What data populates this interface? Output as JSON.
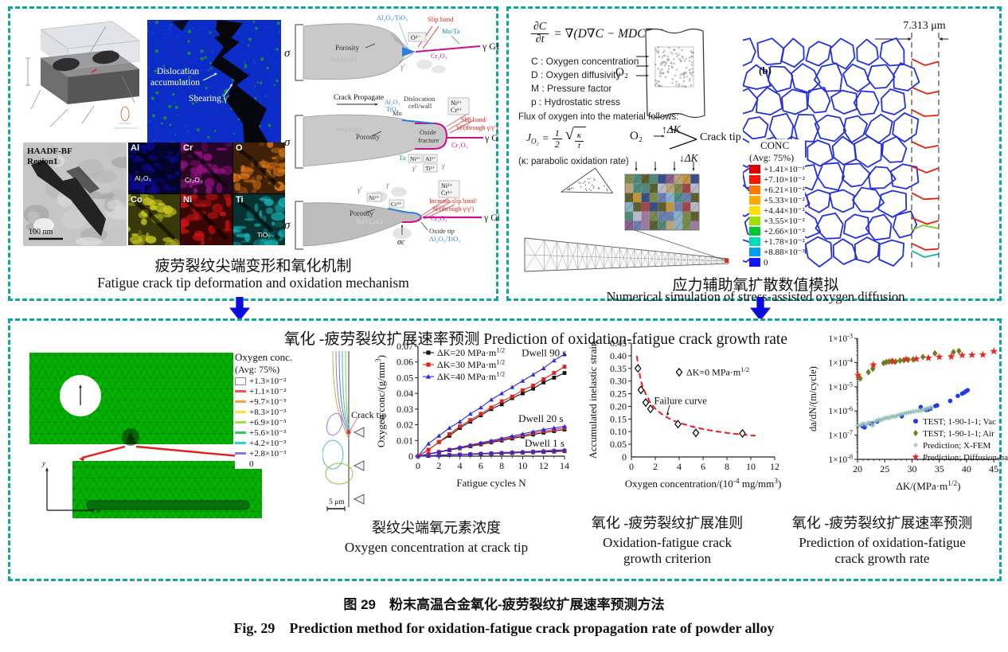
{
  "colors": {
    "teal_border": "#0ea79e",
    "arrow_blue": "#0b0bdd",
    "gb_blue": "#2330dd",
    "gb_red": "#e82010",
    "mesh_green": "#00b400",
    "chart_black": "#141414",
    "chart_red": "#e3211c",
    "chart_blue": "#2b2be0",
    "curve_red": "#ef1c1c",
    "vac_blue": "#1f3be8",
    "air_olive": "#74791f",
    "xfem_teal": "#8fbdb5",
    "diff_red": "#e8261d",
    "magenta_gb": "#cc0f8e",
    "oxide_blue": "#2a7fe0"
  },
  "top_left": {
    "tem": {
      "l1": "Dislocation",
      "l2": "accumulation",
      "l3": "Shearing γ′"
    },
    "haadf": {
      "t1": "HAADF-BF",
      "t2": "Region1",
      "scale": "100 nm"
    },
    "map_tiles": [
      {
        "label": "Al",
        "oxide": "Al₂O₃",
        "color": "#0b0b9a"
      },
      {
        "label": "Cr",
        "oxide": "Cr₂O₃",
        "color": "#951284"
      },
      {
        "label": "O",
        "oxide": null,
        "color": "#e07818"
      },
      {
        "label": "Co",
        "oxide": null,
        "color": "#c8c81e"
      },
      {
        "label": "Ni",
        "oxide": null,
        "color": "#d21414"
      },
      {
        "label": "Ti",
        "oxide": "TiO₂",
        "color": "#17b4b4"
      }
    ],
    "sch": {
      "s1": {
        "sigma": "σ",
        "o2": "O₂",
        "porosity": "Porosity",
        "nio": "NiO/CoO",
        "tip_ox": "Al₂O₃/TiO₂",
        "slip": "Slip band",
        "mota": "Mo/Ta",
        "ggb": "γ GB",
        "cr_ox": "Cr₂O₃",
        "gp": "γ′",
        "o_ion": "O²⁻"
      },
      "s2": {
        "prop": "Crack Propagate",
        "mo": "Mo",
        "nio": "NiO/CoO",
        "porosity": "Porosity",
        "oxfrac1": "Oxide",
        "oxfrac2": "fracture",
        "cell1": "Dislocation",
        "cell2": "cell/wall",
        "al_ox": "Al₂O₃",
        "ti_ox": "TiO₂",
        "ni": "Ni²⁺",
        "cr": "Cr³⁺",
        "slip1": "Slip band/",
        "slip2": "SF(through γ/γ′)",
        "ggb": "γ GB",
        "cr_ox": "Cr₂O₃",
        "ta": "Ta",
        "al": "Al³⁺",
        "ti": "Ti²⁺",
        "gp": "γ′",
        "g": "γ"
      },
      "s3": {
        "sigma": "σ",
        "o2": "O₂",
        "porosity": "Porosity",
        "nio": "NiO/CoO",
        "ni": "Ni²⁺",
        "cr": "Cr³⁺",
        "gp": "γ′",
        "g": "γ",
        "slip1": "Increase slip band/",
        "slip2": "SF(through γ/γ′)",
        "cr_ox": "Cr₂O₃",
        "ggb": "γ GB",
        "oxtip": "Oxide tip",
        "tip_ox": "Al₂O₃/TiO₂",
        "sigc": "σc"
      }
    },
    "cap_zh": "疲劳裂纹尖端变形和氧化机制",
    "cap_en": "Fatigue crack tip deformation and oxidation mechanism"
  },
  "top_right": {
    "eq": {
      "num": "∂C",
      "den": "∂t",
      "rhs": "= ∇(D∇C − MDC∇p)"
    },
    "defs": [
      "C : Oxygen concentration",
      "D : Oxygen diffusivity",
      "M : Pressure factor",
      "p : Hydrostatic stress"
    ],
    "o2": "O₂",
    "dk_up": "↑ΔK",
    "dk_down": "↓ΔK",
    "flux_line": "Flux of oxygen into the material follows:",
    "flux": {
      "J": "J",
      "sub": "O₂",
      "eq": "=",
      "num": "1",
      "den": "2",
      "rad_num": "κ",
      "rad_den": "t"
    },
    "kappa_note": "(κ: parabolic oxidation rate)",
    "crack_tip": "Crack tip",
    "voronoi_label": "(b)",
    "dimension": "7.313 μm",
    "conc_legend": {
      "title": "CONC",
      "sub": "(Avg: 75%)",
      "entries": [
        {
          "label": "+1.41×10⁻¹",
          "color": "#dc0000"
        },
        {
          "label": "+7.10×10⁻²",
          "color": "#ff1400"
        },
        {
          "label": "+6.21×10⁻²",
          "color": "#ff7800"
        },
        {
          "label": "+5.33×10⁻²",
          "color": "#ffaa00"
        },
        {
          "label": "+4.44×10⁻²",
          "color": "#ffe100"
        },
        {
          "label": "+3.55×10⁻²",
          "color": "#a0e000"
        },
        {
          "label": "+2.66×10⁻²",
          "color": "#00c832"
        },
        {
          "label": "+1.78×10⁻²",
          "color": "#00dcb4"
        },
        {
          "label": "+8.88×10⁻³",
          "color": "#00a0f0"
        },
        {
          "label": "0",
          "color": "#1414ff"
        }
      ]
    },
    "cap_zh": "应力辅助氧扩散数值模拟",
    "cap_en": "Numerical simulation of stress-assisted oxygen diffusion"
  },
  "bottom": {
    "title_zh": "氧化 -疲劳裂纹扩展速率预测",
    "title_en": "Prediction of oxidation-fatigue crack growth rate",
    "oxy_legend": {
      "title": "Oxygen conc.",
      "sub": "(Avg: 75%)",
      "entries": [
        {
          "label": "+1.3×10⁻²",
          "color": "#ffffff"
        },
        {
          "label": "+1.1×10⁻²",
          "color": "#ff5050"
        },
        {
          "label": "+9.7×10⁻³",
          "color": "#ffa040"
        },
        {
          "label": "+8.3×10⁻³",
          "color": "#ffe040"
        },
        {
          "label": "+6.9×10⁻³",
          "color": "#a0e040"
        },
        {
          "label": "+5.6×10⁻³",
          "color": "#30c860"
        },
        {
          "label": "+4.2×10⁻³",
          "color": "#30d8c8"
        },
        {
          "label": "+2.8×10⁻³",
          "color": "#8a78e0"
        },
        {
          "label": "0",
          "color": null
        }
      ]
    },
    "contour": {
      "crack_tip": "Crack tip",
      "scale": "5 μm"
    },
    "axis_x": "x",
    "axis_y": "y",
    "cap1_zh": "裂纹尖端氧元素浓度",
    "cap1_en": "Oxygen concentration at crack tip",
    "cap2_zh": "氧化 -疲劳裂纹扩展准则",
    "cap2_en1": "Oxidation-fatigue crack",
    "cap2_en2": "growth criterion",
    "cap3_zh": "氧化 -疲劳裂纹扩展速率预测",
    "cap3_en1": "Prediction of oxidation-fatigue",
    "cap3_en2": "crack growth rate"
  },
  "figure": {
    "cap_zh": "图 29　粉末高温合金氧化-疲劳裂纹扩展速率预测方法",
    "cap_en": "Fig. 29　Prediction method for oxidation-fatigue crack propagation rate of powder alloy"
  },
  "chart_data": [
    {
      "id": "oxygen-vs-cycles",
      "type": "line",
      "xlabel": "Fatigue cycles N",
      "ylabel": "Oxygen conc/(g/mm^{3})",
      "xlim": [
        0,
        14
      ],
      "ylim": [
        0,
        0.07
      ],
      "xticks": [
        0,
        2,
        4,
        6,
        8,
        10,
        12,
        14
      ],
      "yticks": [
        0,
        0.01,
        0.02,
        0.03,
        0.04,
        0.05,
        0.06,
        0.07
      ],
      "legend": [
        {
          "label": "ΔK=20 MPa·m^{1/2}",
          "color": "#141414",
          "marker": "sq"
        },
        {
          "label": "ΔK=30 MPa·m^{1/2}",
          "color": "#e3211c",
          "marker": "sq"
        },
        {
          "label": "ΔK=40 MPa·m^{1/2}",
          "color": "#2b2be0",
          "marker": "tri"
        }
      ],
      "annotations": [
        {
          "text": "Dwell 90 s",
          "x": 9.9,
          "y": 0.0658
        },
        {
          "text": "Dwell 20 s",
          "x": 9.6,
          "y": 0.0238
        },
        {
          "text": "Dwell 1 s",
          "x": 10.2,
          "y": 0.0082
        }
      ],
      "x": [
        0,
        1,
        2,
        3,
        4,
        5,
        6,
        7,
        8,
        9,
        10,
        11,
        12,
        13,
        14
      ],
      "series": [
        {
          "dk": "ΔK=20 MPa·m^{1/2}",
          "dwell": "Dwell 90 s",
          "color": "#141414",
          "marker": "sq",
          "y": [
            0,
            0.004,
            0.009,
            0.013,
            0.018,
            0.022,
            0.026,
            0.03,
            0.033,
            0.037,
            0.04,
            0.043,
            0.047,
            0.05,
            0.053
          ]
        },
        {
          "dk": "ΔK=30 MPa·m^{1/2}",
          "dwell": "Dwell 90 s",
          "color": "#e3211c",
          "marker": "sq",
          "y": [
            0,
            0.004,
            0.009,
            0.014,
            0.019,
            0.023,
            0.027,
            0.031,
            0.035,
            0.038,
            0.042,
            0.045,
            0.049,
            0.053,
            0.057
          ]
        },
        {
          "dk": "ΔK=40 MPa·m^{1/2}",
          "dwell": "Dwell 90 s",
          "color": "#2b2be0",
          "marker": "tri",
          "y": [
            0,
            0.008,
            0.013,
            0.018,
            0.022,
            0.027,
            0.031,
            0.036,
            0.04,
            0.044,
            0.048,
            0.052,
            0.056,
            0.061,
            0.065
          ]
        },
        {
          "dk": "ΔK=20 MPa·m^{1/2}",
          "dwell": "Dwell 20 s",
          "color": "#141414",
          "marker": "sq",
          "y": [
            0,
            0.0012,
            0.0025,
            0.0038,
            0.005,
            0.0063,
            0.0075,
            0.0088,
            0.01,
            0.0113,
            0.0125,
            0.0138,
            0.015,
            0.016,
            0.017
          ]
        },
        {
          "dk": "ΔK=30 MPa·m^{1/2}",
          "dwell": "Dwell 20 s",
          "color": "#e3211c",
          "marker": "sq",
          "y": [
            0,
            0.0013,
            0.0027,
            0.004,
            0.0053,
            0.0067,
            0.008,
            0.0093,
            0.0107,
            0.012,
            0.0133,
            0.0147,
            0.016,
            0.017,
            0.018
          ]
        },
        {
          "dk": "ΔK=40 MPa·m^{1/2}",
          "dwell": "Dwell 20 s",
          "color": "#2b2be0",
          "marker": "tri",
          "y": [
            0,
            0.0014,
            0.0028,
            0.0042,
            0.0057,
            0.0071,
            0.0085,
            0.0099,
            0.0113,
            0.0128,
            0.0142,
            0.0156,
            0.017,
            0.018,
            0.019
          ]
        },
        {
          "dk": "ΔK=20 MPa·m^{1/2}",
          "dwell": "Dwell 1 s",
          "color": "#141414",
          "marker": "sq",
          "y": [
            0,
            0.0002,
            0.0005,
            0.0007,
            0.0009,
            0.0011,
            0.0014,
            0.0016,
            0.0018,
            0.002,
            0.0023,
            0.0025,
            0.0027,
            0.0029,
            0.0032
          ]
        },
        {
          "dk": "ΔK=30 MPa·m^{1/2}",
          "dwell": "Dwell 1 s",
          "color": "#e3211c",
          "marker": "sq",
          "y": [
            0,
            0.0003,
            0.0005,
            0.0008,
            0.001,
            0.0013,
            0.0015,
            0.0018,
            0.002,
            0.0023,
            0.0025,
            0.0028,
            0.003,
            0.0033,
            0.0035
          ]
        },
        {
          "dk": "ΔK=40 MPa·m^{1/2}",
          "dwell": "Dwell 1 s",
          "color": "#2b2be0",
          "marker": "tri",
          "y": [
            0,
            0.0003,
            0.0006,
            0.0009,
            0.0011,
            0.0014,
            0.0017,
            0.002,
            0.0023,
            0.0026,
            0.0028,
            0.0031,
            0.0034,
            0.0037,
            0.004
          ]
        }
      ]
    },
    {
      "id": "failure-criterion",
      "type": "scatter",
      "xlabel": "Oxygen concentration/(10^{-4} mg/mm^{3})",
      "ylabel": "Accumulated inelastic strain",
      "xlim": [
        0,
        12
      ],
      "ylim": [
        0,
        0.45
      ],
      "xticks": [
        0,
        2,
        4,
        6,
        8,
        10,
        12
      ],
      "yticks": [
        0.05,
        0.1,
        0.15,
        0.2,
        0.25,
        0.3,
        0.35,
        0.4,
        0.45
      ],
      "legend": [
        {
          "label": "ΔK=0 MPa·m^{1/2}",
          "marker": "diaOpen",
          "color": "#141414"
        }
      ],
      "annotation": {
        "text": "Failure curve"
      },
      "points": [
        [
          0.55,
          0.35
        ],
        [
          0.8,
          0.265
        ],
        [
          1.2,
          0.215
        ],
        [
          1.6,
          0.19
        ],
        [
          3.9,
          0.13
        ],
        [
          5.4,
          0.095
        ],
        [
          9.3,
          0.093
        ]
      ],
      "curve": {
        "color": "#ef1c1c",
        "dashed": true,
        "x": [
          0.45,
          0.6,
          0.8,
          1.0,
          1.3,
          1.6,
          2.0,
          2.5,
          3.0,
          3.5,
          4.0,
          5.0,
          6.0,
          7.0,
          8.0,
          9.0,
          10.0,
          10.4
        ],
        "y": [
          0.4,
          0.35,
          0.3,
          0.27,
          0.24,
          0.213,
          0.191,
          0.171,
          0.156,
          0.144,
          0.135,
          0.121,
          0.11,
          0.102,
          0.095,
          0.09,
          0.085,
          0.084
        ]
      }
    },
    {
      "id": "crack-growth-rate",
      "type": "scatter-log",
      "xlabel": "ΔK/(MPa·m^{1/2})",
      "ylabel": "da/dN/(m/cycle)",
      "xlim": [
        20,
        46
      ],
      "ylim_log": [
        -8,
        -3
      ],
      "xticks": [
        20,
        25,
        30,
        35,
        40,
        45
      ],
      "ytick_labels": [
        "1×10^{-3}",
        "1×10^{-4}",
        "1×10^{-5}",
        "1×10^{-6}",
        "1×10^{-7}",
        "1×10^{-8}"
      ],
      "series": [
        {
          "label": "TEST; 1-90-1-1; Vac",
          "marker": "circ",
          "color": "#1f3be8",
          "points": [
            [
              21,
              2.3e-07
            ],
            [
              21.3,
              2.1e-07
            ],
            [
              22.4,
              2.9e-07
            ],
            [
              22.7,
              3.1e-07
            ],
            [
              23.6,
              3.6e-07
            ],
            [
              28.1,
              6e-07
            ],
            [
              31.6,
              1.45e-06
            ],
            [
              32.6,
              1.1e-06
            ],
            [
              33,
              1.15e-06
            ],
            [
              33.4,
              1.25e-06
            ],
            [
              34.3,
              1.6e-06
            ],
            [
              34.6,
              1.7e-06
            ],
            [
              37,
              2.6e-06
            ],
            [
              38.4,
              4.2e-06
            ],
            [
              39.2,
              5.2e-06
            ],
            [
              39.6,
              5.8e-06
            ],
            [
              39.9,
              6.5e-06
            ],
            [
              40.2,
              7.2e-06
            ]
          ]
        },
        {
          "label": "TEST; 1-90-1-1; Air",
          "marker": "dia",
          "color": "#74791f",
          "points": [
            [
              20.5,
              2.2e-05
            ],
            [
              22,
              4e-05
            ],
            [
              22.8,
              5.5e-05
            ],
            [
              24.8,
              9.5e-05
            ],
            [
              25.3,
              0.000105
            ],
            [
              25.8,
              0.00011
            ],
            [
              26.3,
              0.000115
            ],
            [
              27,
              0.00011
            ],
            [
              27.8,
              0.00012
            ],
            [
              28.5,
              0.000125
            ],
            [
              29.3,
              0.00013
            ],
            [
              30.2,
              0.000135
            ],
            [
              32,
              0.00017
            ],
            [
              34.2,
              0.00024
            ],
            [
              37.6,
              0.00027
            ],
            [
              38.6,
              0.0003
            ]
          ]
        },
        {
          "label": "Prediction; X-FEM",
          "marker": "ast",
          "color": "#8fbdb5",
          "points": [
            [
              20,
              2.6e-07
            ],
            [
              20.4,
              2.4e-07
            ],
            [
              20.8,
              2.8e-07
            ],
            [
              21.2,
              3e-07
            ],
            [
              21.6,
              2.7e-07
            ],
            [
              22,
              3.3e-07
            ],
            [
              22.4,
              3.1e-07
            ],
            [
              22.8,
              2.5e-07
            ],
            [
              23.2,
              3.6e-07
            ],
            [
              23.6,
              4e-07
            ],
            [
              24,
              4.4e-07
            ],
            [
              24.4,
              4.2e-07
            ],
            [
              24.8,
              4.8e-07
            ],
            [
              25.2,
              5.2e-07
            ],
            [
              25.6,
              5e-07
            ],
            [
              26,
              5.6e-07
            ],
            [
              26.4,
              6e-07
            ],
            [
              26.8,
              5.8e-07
            ],
            [
              27.2,
              6.4e-07
            ],
            [
              27.6,
              6.8e-07
            ],
            [
              28,
              7.2e-07
            ],
            [
              28.4,
              7.6e-07
            ],
            [
              28.8,
              8e-07
            ],
            [
              29.2,
              8.4e-07
            ],
            [
              29.6,
              8.8e-07
            ],
            [
              30,
              9.2e-07
            ],
            [
              30.5,
              9.6e-07
            ],
            [
              31,
              1e-06
            ],
            [
              31.5,
              1.05e-06
            ],
            [
              32,
              1.1e-06
            ],
            [
              32.5,
              1.2e-06
            ],
            [
              33,
              1.3e-06
            ],
            [
              33.5,
              1.4e-06
            ]
          ]
        },
        {
          "label": "Prediction; Diffusion-based",
          "marker": "star",
          "color": "#e8261d",
          "points": [
            [
              20.1,
              3e-05
            ],
            [
              22.9,
              8e-05
            ],
            [
              26.5,
              0.00011
            ],
            [
              28.9,
              0.000135
            ],
            [
              30.8,
              0.00014
            ],
            [
              33,
              0.000155
            ],
            [
              35,
              0.00017
            ],
            [
              37.2,
              0.000175
            ],
            [
              39.2,
              0.0002
            ],
            [
              41,
              0.000205
            ],
            [
              43,
              0.00021
            ],
            [
              45,
              0.00029
            ]
          ]
        }
      ]
    }
  ]
}
